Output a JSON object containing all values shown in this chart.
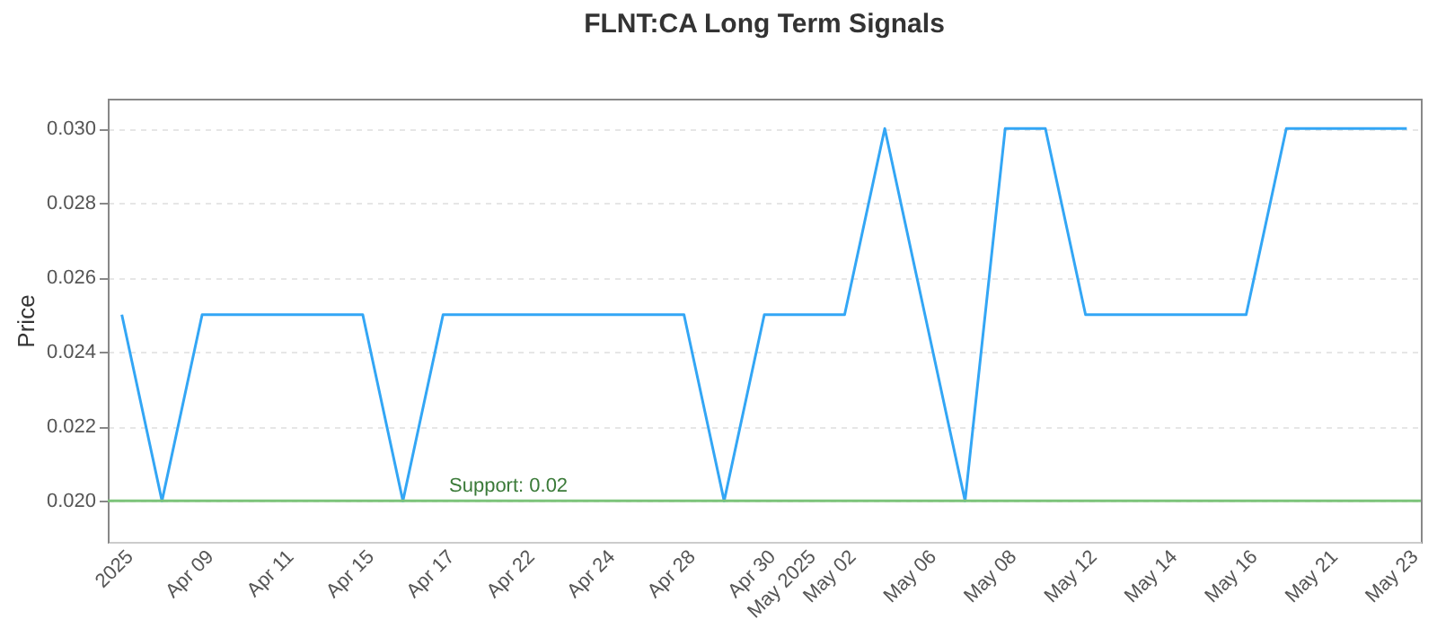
{
  "chart_data": {
    "type": "line",
    "title": "FLNT:CA Long Term Signals",
    "ylabel": "Price",
    "categories": [
      "2025",
      null,
      "Apr 09",
      null,
      "Apr 11",
      null,
      "Apr 15",
      null,
      "Apr 17",
      null,
      "Apr 22",
      null,
      "Apr 24",
      null,
      "Apr 28",
      null,
      "Apr 30",
      "May 2025",
      "May 02",
      null,
      "May 06",
      null,
      "May 08",
      null,
      "May 12",
      null,
      "May 14",
      null,
      "May 16",
      null,
      "May 21",
      null,
      "May 23"
    ],
    "series": [
      {
        "color": "#33a6f5",
        "values": [
          0.025,
          0.02,
          0.025,
          0.025,
          0.025,
          0.025,
          0.025,
          0.02,
          0.025,
          0.025,
          0.025,
          0.025,
          0.025,
          0.025,
          0.025,
          0.02,
          0.025,
          0.025,
          0.025,
          0.03,
          0.025,
          0.02,
          0.03,
          0.03,
          0.025,
          0.025,
          0.025,
          0.025,
          0.025,
          0.03,
          0.03,
          0.03,
          0.03
        ]
      }
    ],
    "ylim": [
      0.0189,
      0.0308
    ],
    "yticks": [
      {
        "value": 0.02,
        "label": "0.020"
      },
      {
        "value": 0.022,
        "label": "0.022"
      },
      {
        "value": 0.024,
        "label": "0.024"
      },
      {
        "value": 0.026,
        "label": "0.026"
      },
      {
        "value": 0.028,
        "label": "0.028"
      },
      {
        "value": 0.03,
        "label": "0.030"
      }
    ],
    "ref_lines": [
      {
        "axis": "y",
        "value": 0.02,
        "label": "Support: 0.02",
        "color": "#7cc47a"
      }
    ],
    "grid": "y",
    "marker": "none",
    "line_style": "solid"
  }
}
